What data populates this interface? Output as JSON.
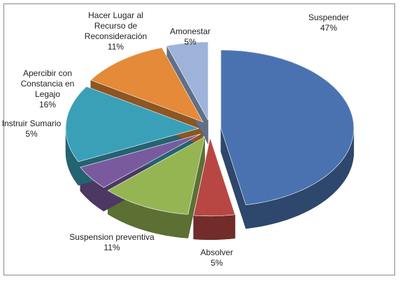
{
  "chart_data": {
    "type": "pie",
    "three_d": true,
    "exploded": true,
    "categories": [
      "Suspender",
      "Absolver",
      "Suspension preventiva",
      "Instruir Sumario",
      "Apercibir con Constancia en Legajo",
      "Hacer Lugar al Recurso de Reconsideración",
      "Amonestar"
    ],
    "values": [
      47,
      5,
      11,
      5,
      16,
      11,
      5
    ],
    "value_labels": [
      "47%",
      "5%",
      "11%",
      "5%",
      "16%",
      "11%",
      "5%"
    ],
    "colors": [
      "#4a72b0",
      "#b84744",
      "#95b553",
      "#7a5a9e",
      "#3aa0b8",
      "#e48a38",
      "#9db3d9"
    ]
  }
}
